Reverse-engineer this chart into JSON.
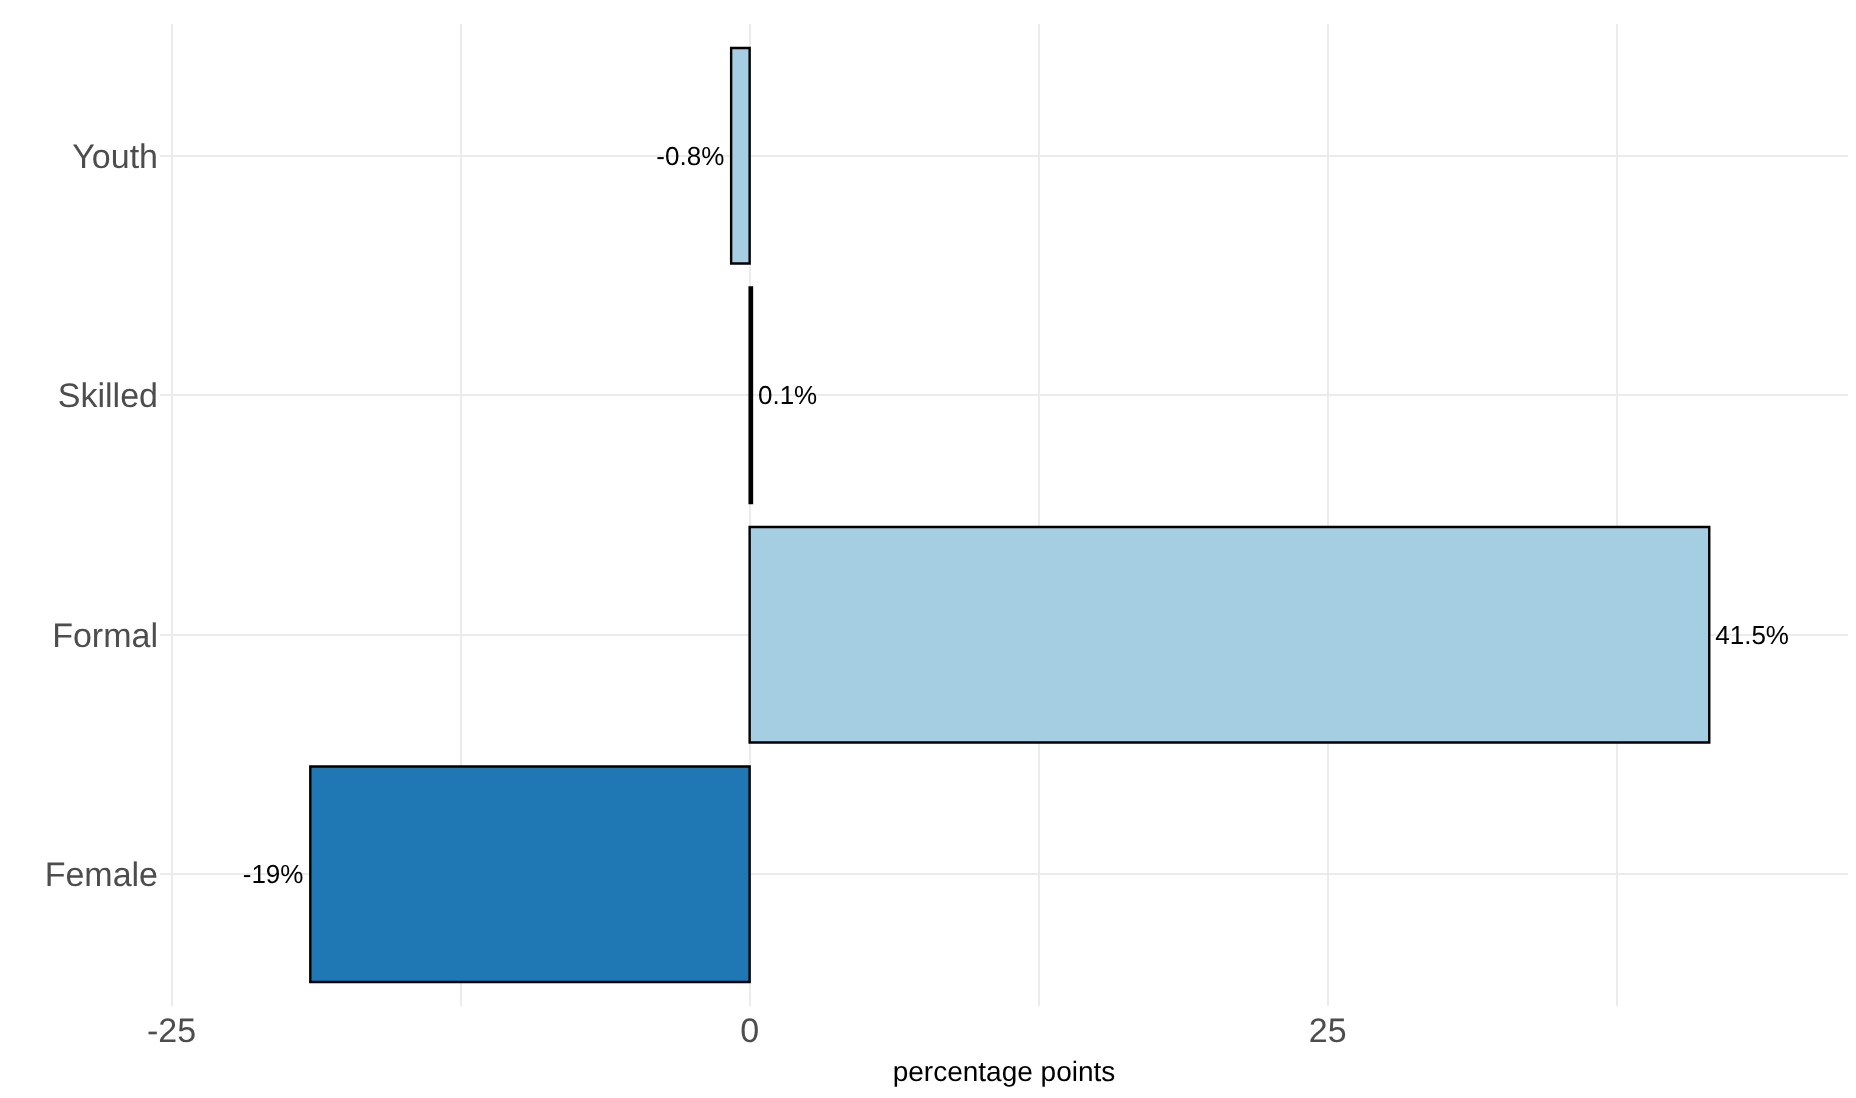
{
  "chart_data": {
    "type": "bar",
    "orientation": "horizontal",
    "xlabel": "percentage points",
    "categories": [
      "Youth",
      "Skilled",
      "Formal",
      "Female"
    ],
    "values": [
      -0.8,
      0.1,
      41.5,
      -19
    ],
    "colors": [
      "#a6cee3",
      "#a6cee3",
      "#a6cee3",
      "#1f78b4"
    ],
    "value_labels": [
      "-0.8%",
      "0.1%",
      "41.5%",
      "-19%"
    ],
    "xlim": [
      -25.5,
      47.5
    ],
    "xticks": [
      -25,
      {
        "value": -12.5,
        "label": null
      },
      0,
      {
        "value": 12.5,
        "label": null
      },
      25,
      {
        "value": 37.5,
        "label": null
      }
    ],
    "grid": true,
    "legend": false
  }
}
